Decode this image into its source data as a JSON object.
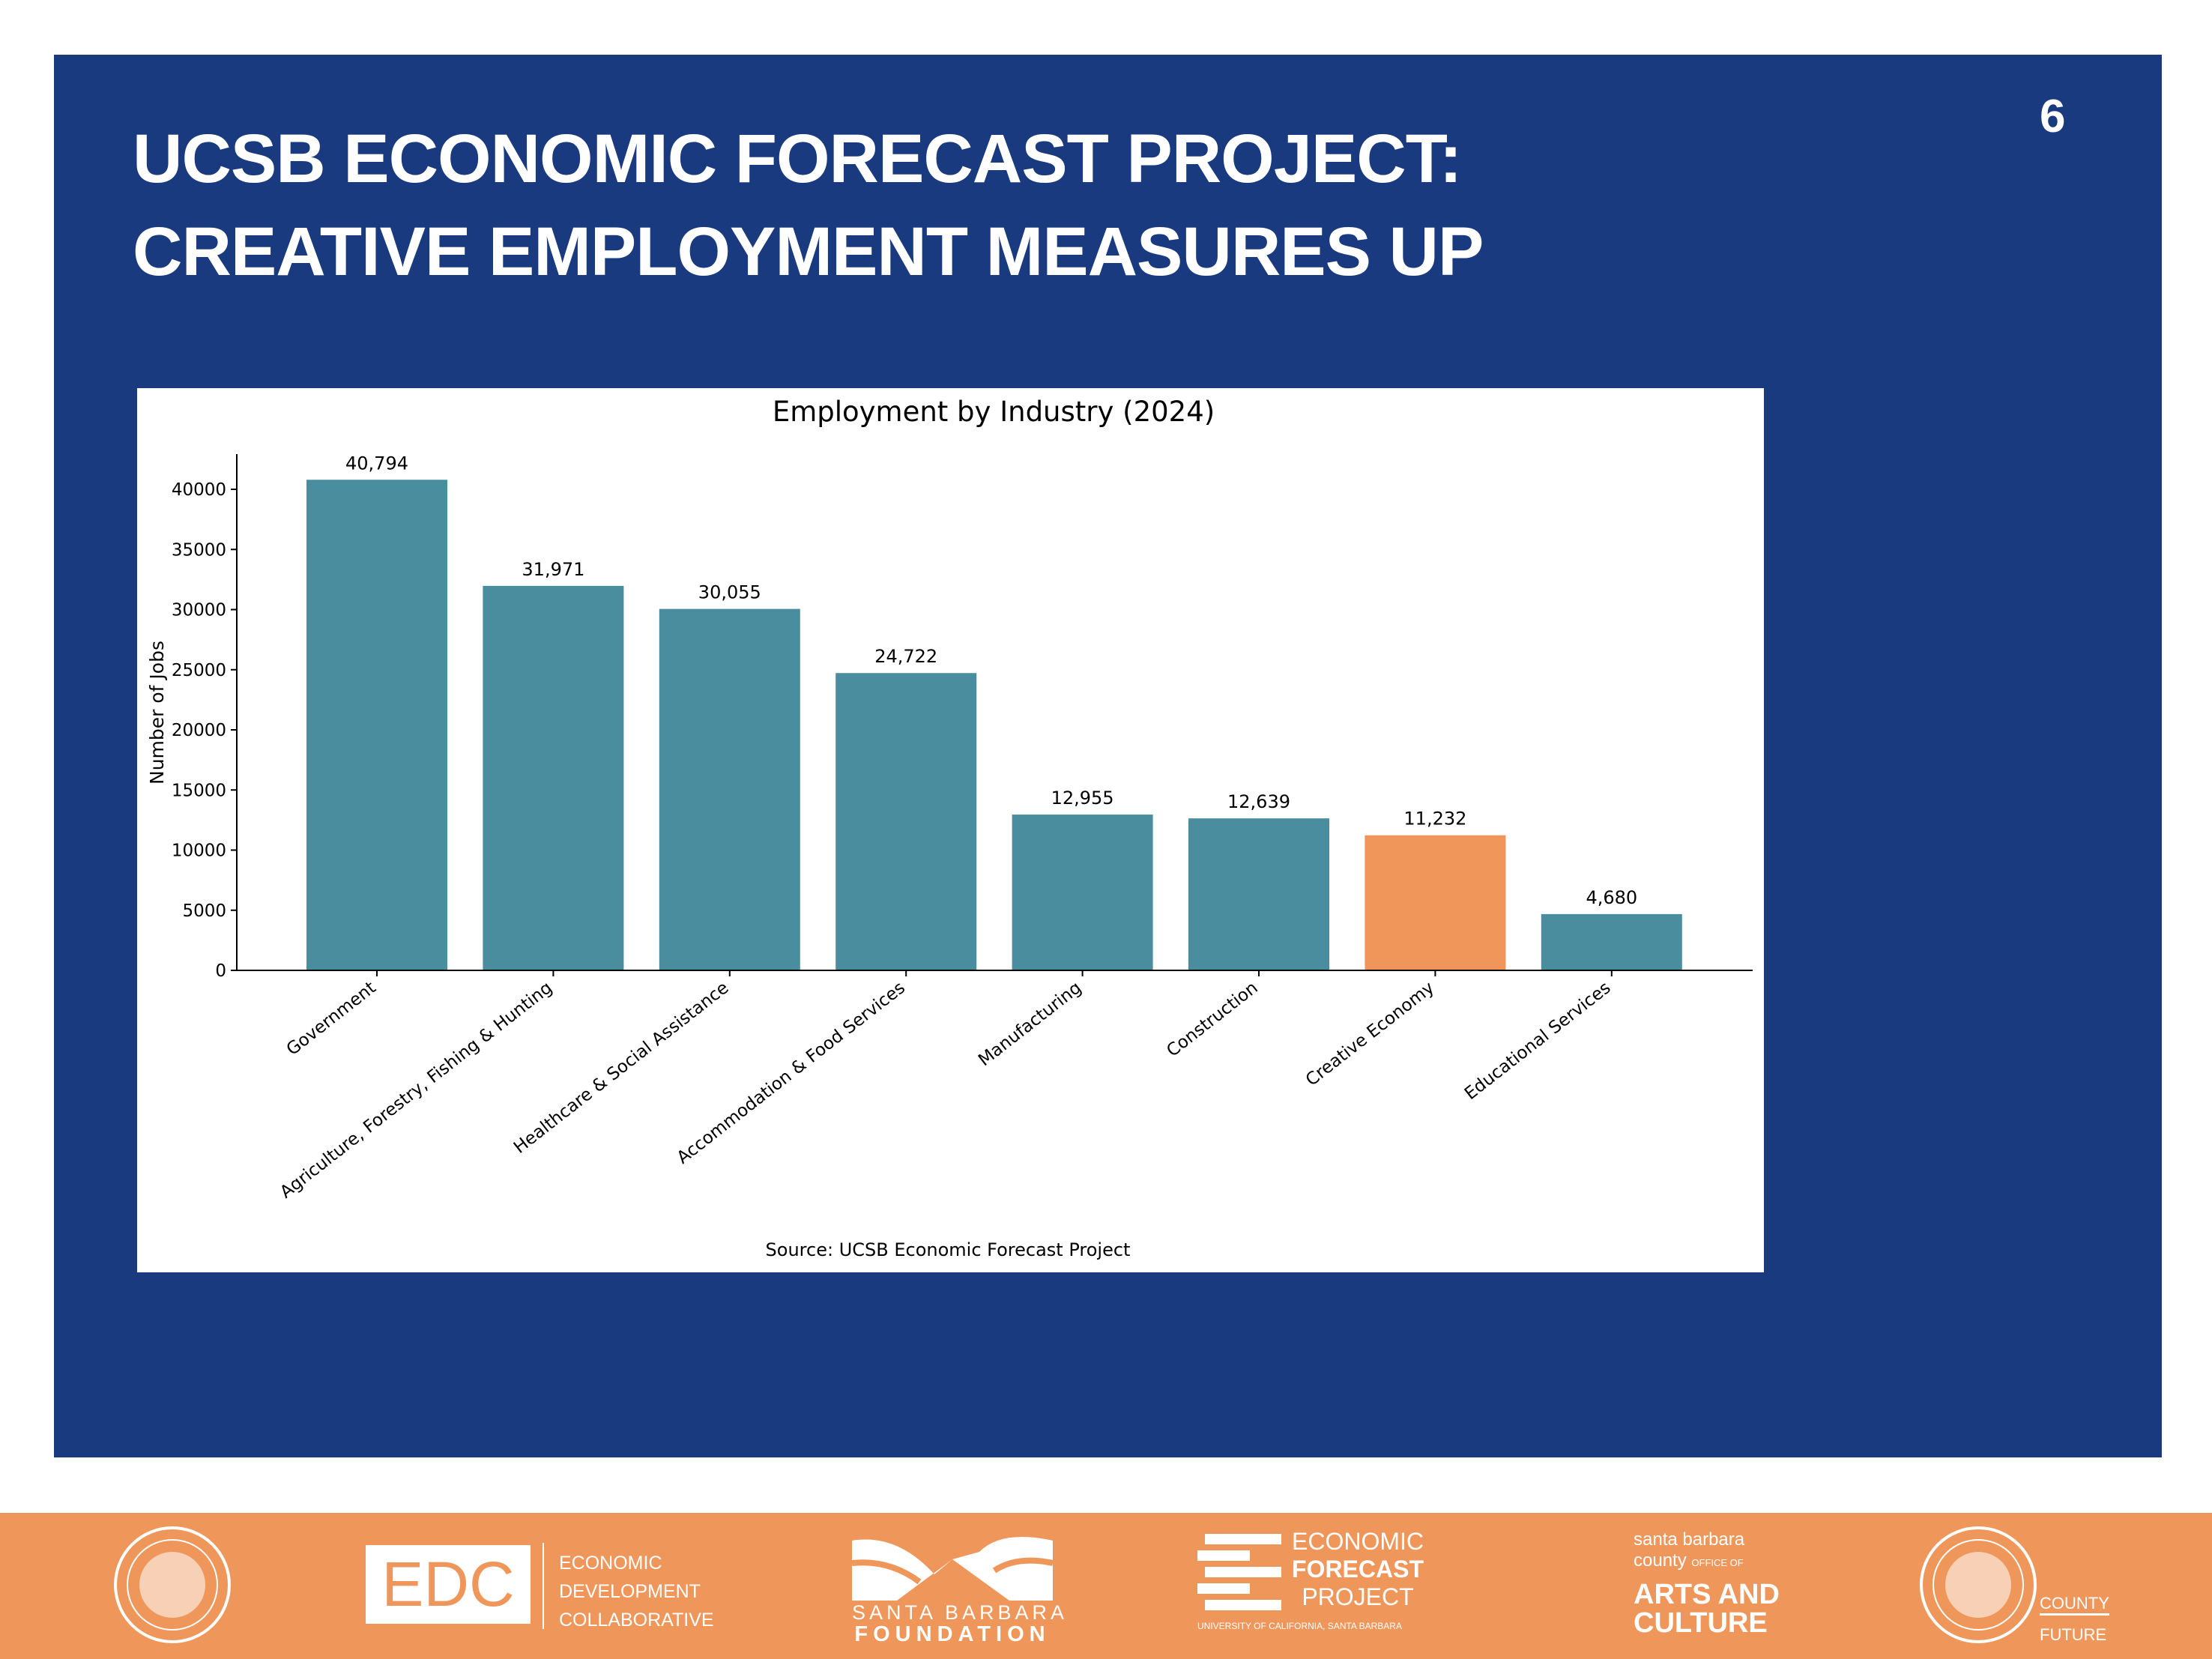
{
  "slide": {
    "title_line1": "UCSB ECONOMIC FORECAST PROJECT:",
    "title_line2": "CREATIVE EMPLOYMENT MEASURES UP",
    "page_number": "6",
    "background_color": "#1A3A80"
  },
  "chart_data": {
    "type": "bar",
    "title": "Employment by Industry (2024)",
    "xlabel": "",
    "ylabel": "Number of Jobs",
    "source": "Source: UCSB Economic Forecast Project",
    "categories": [
      "Government",
      "Agriculture, Forestry, Fishing & Hunting",
      "Healthcare & Social Assistance",
      "Accommodation & Food Services",
      "Manufacturing",
      "Construction",
      "Creative Economy",
      "Educational Services"
    ],
    "values": [
      40794,
      31971,
      30055,
      24722,
      12955,
      12639,
      11232,
      4680
    ],
    "value_labels": [
      "40,794",
      "31,971",
      "30,055",
      "24,722",
      "12,955",
      "12,639",
      "11,232",
      "4,680"
    ],
    "highlight_category": "Creative Economy",
    "colors": {
      "default": "#4A8D9F",
      "highlight": "#F0965A"
    },
    "ylim": [
      0,
      42800
    ],
    "yticks": [
      0,
      5000,
      10000,
      15000,
      20000,
      25000,
      30000,
      35000,
      40000
    ],
    "ytick_labels": [
      "0",
      "5000",
      "10000",
      "15000",
      "20000",
      "25000",
      "30000",
      "35000",
      "40000"
    ],
    "grid": false,
    "legend": "none"
  },
  "footer": {
    "background_color": "#EF975B",
    "logos": {
      "edc": {
        "mark": "EDC",
        "lines": [
          "ECONOMIC",
          "DEVELOPMENT",
          "COLLABORATIVE"
        ]
      },
      "sbf": {
        "lines": [
          "SANTA BARBARA",
          "FOUNDATION"
        ]
      },
      "efp": {
        "lines": [
          "ECONOMIC",
          "FORECAST",
          "PROJECT"
        ],
        "sub": "UNIVERSITY OF CALIFORNIA, SANTA BARBARA"
      },
      "arts": {
        "lines": [
          "santa barbara",
          "county",
          "OFFICE OF",
          "ARTS AND",
          "CULTURE"
        ]
      },
      "county": {
        "lines": [
          "COUNTY",
          "FUTURE"
        ]
      }
    }
  }
}
